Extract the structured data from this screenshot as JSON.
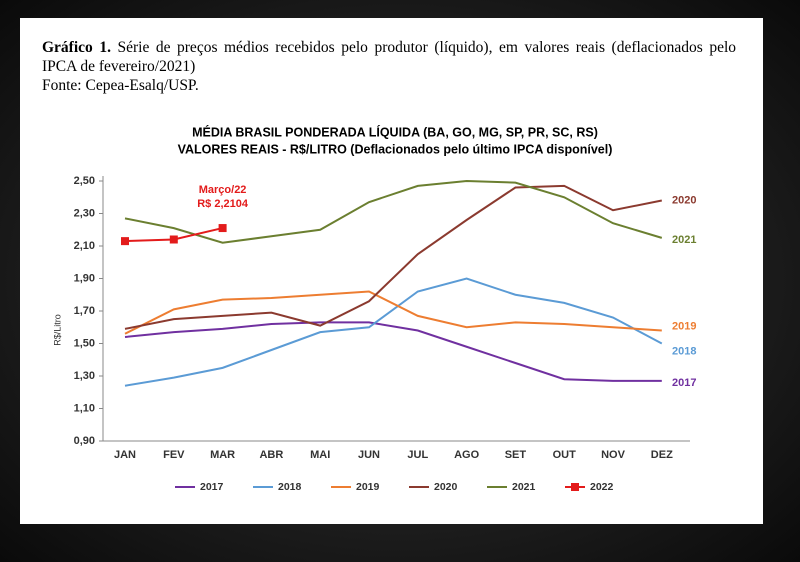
{
  "caption": {
    "label": "Gráfico 1.",
    "text": "Série de preços médios recebidos pelo produtor (líquido), em valores reais (deflacionados pelo IPCA de fevereiro/2021)",
    "source": "Fonte: Cepea-Esalq/USP."
  },
  "chart_data": {
    "type": "line",
    "title": "MÉDIA BRASIL PONDERADA LÍQUIDA (BA, GO, MG, SP, PR, SC, RS)",
    "subtitle": "VALORES REAIS - R$/LITRO (Deflacionados pelo último IPCA disponível)",
    "y_label": "R$/Litro",
    "categories": [
      "JAN",
      "FEV",
      "MAR",
      "ABR",
      "MAI",
      "JUN",
      "JUL",
      "AGO",
      "SET",
      "OUT",
      "NOV",
      "DEZ"
    ],
    "ylim": [
      0.9,
      2.5
    ],
    "yticks": [
      {
        "value": 0.9,
        "label": "0,90"
      },
      {
        "value": 1.1,
        "label": "1,10"
      },
      {
        "value": 1.3,
        "label": "1,30"
      },
      {
        "value": 1.5,
        "label": "1,50"
      },
      {
        "value": 1.7,
        "label": "1,70"
      },
      {
        "value": 1.9,
        "label": "1,90"
      },
      {
        "value": 2.1,
        "label": "2,10"
      },
      {
        "value": 2.3,
        "label": "2,30"
      },
      {
        "value": 2.5,
        "label": "2,50"
      }
    ],
    "grid": false,
    "legend": "bottom",
    "annotation": "Março/22",
    "series": [
      {
        "name": "2017",
        "color": "#7030a0",
        "values": [
          1.54,
          1.57,
          1.59,
          1.62,
          1.63,
          1.63,
          1.58,
          1.48,
          1.38,
          1.28,
          1.27,
          1.27
        ]
      },
      {
        "name": "2018",
        "color": "#5b9bd5",
        "values": [
          1.24,
          1.29,
          1.35,
          1.46,
          1.57,
          1.6,
          1.82,
          1.9,
          1.8,
          1.75,
          1.66,
          1.5
        ]
      },
      {
        "name": "2019",
        "color": "#ed7d31",
        "values": [
          1.56,
          1.71,
          1.77,
          1.78,
          1.8,
          1.82,
          1.67,
          1.6,
          1.63,
          1.62,
          1.6,
          1.58
        ]
      },
      {
        "name": "2020",
        "color": "#8b3a2f",
        "values": [
          1.59,
          1.65,
          1.67,
          1.69,
          1.61,
          1.76,
          2.05,
          2.26,
          2.46,
          2.47,
          2.32,
          2.38
        ]
      },
      {
        "name": "2021",
        "color": "#6b7f30",
        "values": [
          2.27,
          2.21,
          2.12,
          2.16,
          2.2,
          2.37,
          2.47,
          2.5,
          2.49,
          2.4,
          2.24,
          2.15
        ]
      },
      {
        "name": "2022",
        "color": "#e31b1b",
        "marker": "square",
        "values": [
          2.13,
          2.14,
          2.2104,
          null,
          null,
          null,
          null,
          null,
          null,
          null,
          null,
          null
        ],
        "value_labels": [
          null,
          null,
          "R$ 2,2104",
          null,
          null,
          null,
          null,
          null,
          null,
          null,
          null,
          null
        ]
      }
    ]
  }
}
